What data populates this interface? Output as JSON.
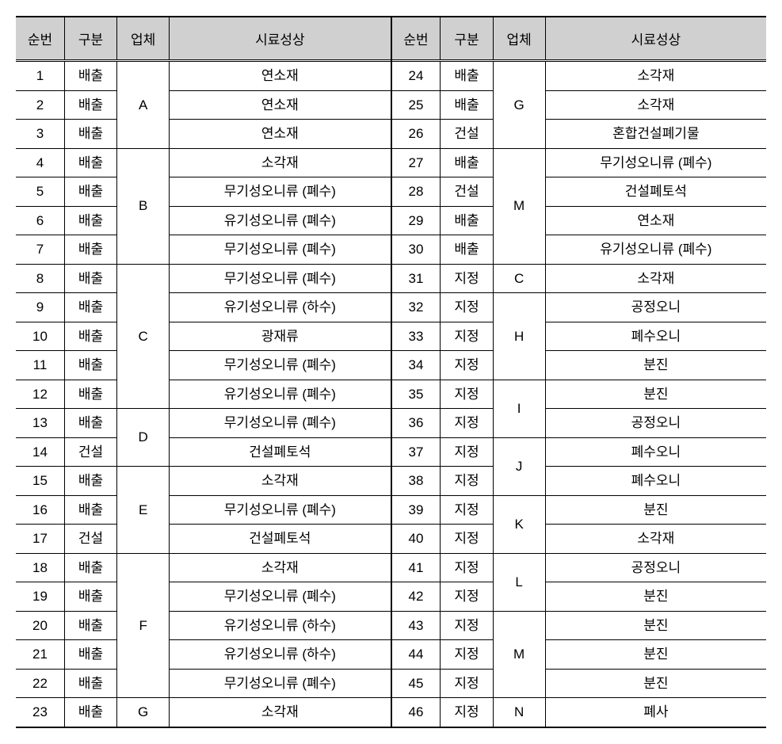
{
  "table": {
    "headers": {
      "num": "순번",
      "category": "구분",
      "company": "업체",
      "sample": "시료성상"
    },
    "colors": {
      "header_bg": "#d0d0d0",
      "border": "#000000",
      "background": "#ffffff",
      "text": "#000000"
    },
    "font_size_header": 17,
    "font_size_cell": 17,
    "left_rows": [
      {
        "num": "1",
        "category": "배출",
        "company": "A",
        "company_span": 3,
        "sample": "연소재"
      },
      {
        "num": "2",
        "category": "배출",
        "sample": "연소재"
      },
      {
        "num": "3",
        "category": "배출",
        "sample": "연소재"
      },
      {
        "num": "4",
        "category": "배출",
        "company": "B",
        "company_span": 4,
        "sample": "소각재"
      },
      {
        "num": "5",
        "category": "배출",
        "sample": "무기성오니류 (폐수)"
      },
      {
        "num": "6",
        "category": "배출",
        "sample": "유기성오니류 (폐수)"
      },
      {
        "num": "7",
        "category": "배출",
        "sample": "무기성오니류 (폐수)"
      },
      {
        "num": "8",
        "category": "배출",
        "company": "C",
        "company_span": 5,
        "sample": "무기성오니류 (폐수)"
      },
      {
        "num": "9",
        "category": "배출",
        "sample": "유기성오니류 (하수)"
      },
      {
        "num": "10",
        "category": "배출",
        "sample": "광재류"
      },
      {
        "num": "11",
        "category": "배출",
        "sample": "무기성오니류 (폐수)"
      },
      {
        "num": "12",
        "category": "배출",
        "sample": "유기성오니류 (폐수)"
      },
      {
        "num": "13",
        "category": "배출",
        "company": "D",
        "company_span": 2,
        "sample": "무기성오니류 (폐수)"
      },
      {
        "num": "14",
        "category": "건설",
        "sample": "건설폐토석"
      },
      {
        "num": "15",
        "category": "배출",
        "company": "E",
        "company_span": 3,
        "sample": "소각재"
      },
      {
        "num": "16",
        "category": "배출",
        "sample": "무기성오니류 (폐수)"
      },
      {
        "num": "17",
        "category": "건설",
        "sample": "건설폐토석"
      },
      {
        "num": "18",
        "category": "배출",
        "company": "F",
        "company_span": 5,
        "sample": "소각재"
      },
      {
        "num": "19",
        "category": "배출",
        "sample": "무기성오니류 (폐수)"
      },
      {
        "num": "20",
        "category": "배출",
        "sample": "유기성오니류 (하수)"
      },
      {
        "num": "21",
        "category": "배출",
        "sample": "유기성오니류 (하수)"
      },
      {
        "num": "22",
        "category": "배출",
        "sample": "무기성오니류 (폐수)"
      },
      {
        "num": "23",
        "category": "배출",
        "company": "G",
        "company_span": 1,
        "sample": "소각재"
      }
    ],
    "right_rows": [
      {
        "num": "24",
        "category": "배출",
        "company": "G",
        "company_span": 3,
        "sample": "소각재"
      },
      {
        "num": "25",
        "category": "배출",
        "sample": "소각재"
      },
      {
        "num": "26",
        "category": "건설",
        "sample": "혼합건설폐기물"
      },
      {
        "num": "27",
        "category": "배출",
        "company": "M",
        "company_span": 4,
        "sample": "무기성오니류 (폐수)"
      },
      {
        "num": "28",
        "category": "건설",
        "sample": "건설폐토석"
      },
      {
        "num": "29",
        "category": "배출",
        "sample": "연소재"
      },
      {
        "num": "30",
        "category": "배출",
        "sample": "유기성오니류 (폐수)"
      },
      {
        "num": "31",
        "category": "지정",
        "company": "C",
        "company_span": 1,
        "sample": "소각재"
      },
      {
        "num": "32",
        "category": "지정",
        "company": "H",
        "company_span": 3,
        "sample": "공정오니"
      },
      {
        "num": "33",
        "category": "지정",
        "sample": "폐수오니"
      },
      {
        "num": "34",
        "category": "지정",
        "sample": "분진"
      },
      {
        "num": "35",
        "category": "지정",
        "company": "I",
        "company_span": 2,
        "sample": "분진"
      },
      {
        "num": "36",
        "category": "지정",
        "sample": "공정오니"
      },
      {
        "num": "37",
        "category": "지정",
        "company": "J",
        "company_span": 2,
        "sample": "폐수오니"
      },
      {
        "num": "38",
        "category": "지정",
        "sample": "폐수오니"
      },
      {
        "num": "39",
        "category": "지정",
        "company": "K",
        "company_span": 2,
        "sample": "분진"
      },
      {
        "num": "40",
        "category": "지정",
        "sample": "소각재"
      },
      {
        "num": "41",
        "category": "지정",
        "company": "L",
        "company_span": 2,
        "sample": "공정오니"
      },
      {
        "num": "42",
        "category": "지정",
        "sample": "분진"
      },
      {
        "num": "43",
        "category": "지정",
        "company": "M",
        "company_span": 3,
        "sample": "분진"
      },
      {
        "num": "44",
        "category": "지정",
        "sample": "분진"
      },
      {
        "num": "45",
        "category": "지정",
        "sample": "분진"
      },
      {
        "num": "46",
        "category": "지정",
        "company": "N",
        "company_span": 1,
        "sample": "폐사"
      }
    ]
  }
}
